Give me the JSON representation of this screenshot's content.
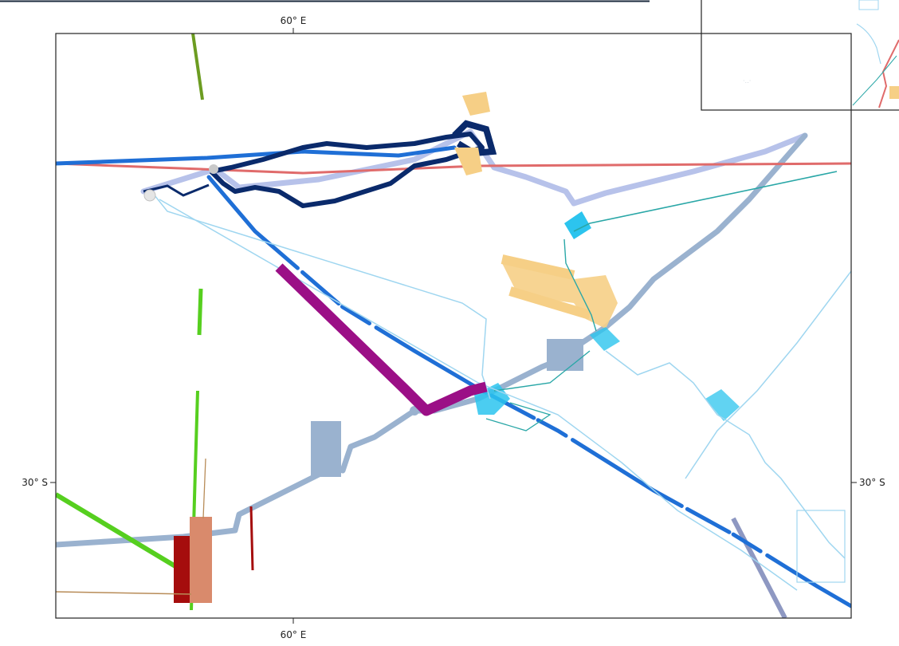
{
  "labels": {
    "lon_top": "60° E",
    "lon_bottom": "60° E",
    "lat_left": "30° S",
    "lat_right": "30° S"
  },
  "colors": {
    "frame": "#222222",
    "top_bar": "#1b2a3d",
    "inset_frame": "#222222",
    "dark_navy": "#0a2a6b",
    "medium_blue": "#1f6fd6",
    "light_lavender": "#b7c2ea",
    "steel_blue": "#9ab2cf",
    "slate_purple": "#8e98c2",
    "coral_red": "#e06b6b",
    "purple_magenta": "#9b0f86",
    "light_orange": "#f6cf86",
    "cyan": "#2cc4ee",
    "light_cyan": "#9fd6f0",
    "teal": "#2aa7a7",
    "green": "#56cf1f",
    "olive_green": "#6c9c21",
    "dark_red": "#a50d0d",
    "salmon": "#d98a6c",
    "tan": "#b88c58"
  },
  "icons": {
    "tick": "tick-mark",
    "track": "ship-track"
  }
}
